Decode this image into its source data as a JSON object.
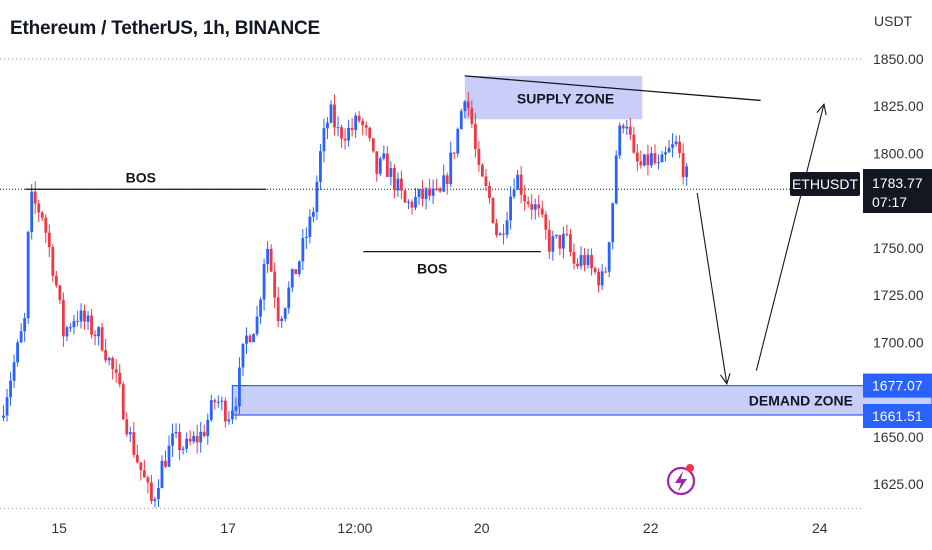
{
  "header": {
    "title": "Ethereum / TetherUS, 1h, BINANCE"
  },
  "colors": {
    "up": "#2962ff",
    "down": "#f23645",
    "zone_fill": "#c9cef8",
    "zone_border": "#2962ff",
    "line": "#131722",
    "dotted": "#9598a1",
    "tag_dark": "#131722",
    "tag_blue": "#2962ff",
    "logo_purple": "#9c27b0",
    "logo_red": "#f23645"
  },
  "chart_data": {
    "type": "candlestick",
    "symbol": "ETHUSDT",
    "y_unit": "USDT",
    "ylim": [
      1607,
      1860
    ],
    "y_ticks": [
      "1850.00",
      "1825.00",
      "1800.00",
      "1775.00",
      "1750.00",
      "1725.00",
      "1700.00",
      "1675.00",
      "1650.00",
      "1625.00"
    ],
    "x_ticks": [
      "15",
      "17",
      "12:00",
      "20",
      "22",
      "24"
    ],
    "x_tick_values": [
      15,
      17,
      18.5,
      20,
      22,
      24
    ],
    "xlim": [
      14.3,
      24.5
    ],
    "last_price": {
      "label": "ETHUSDT",
      "value": "1783.77",
      "countdown": "07:17"
    },
    "demand_zone": {
      "label": "DEMAND ZONE",
      "top": 1677.07,
      "bottom": 1661.51,
      "top_label": "1677.07",
      "bottom_label": "1661.51",
      "x_start": 17.05
    },
    "supply_zone": {
      "label": "SUPPLY ZONE",
      "top": 1841,
      "bottom": 1818,
      "x_start": 19.8,
      "x_end": 21.9
    },
    "bos": [
      {
        "label": "BOS",
        "price": 1781,
        "x_start": 14.6,
        "x_end": 17.45
      },
      {
        "label": "BOS",
        "price": 1748,
        "x_start": 18.6,
        "x_end": 20.7
      }
    ],
    "trendline": {
      "from": {
        "x": 19.8,
        "price": 1841
      },
      "to": {
        "x": 23.3,
        "price": 1828
      }
    },
    "projection": [
      {
        "x": 22.55,
        "price": 1779
      },
      {
        "x": 22.9,
        "price": 1678
      },
      {
        "x": 23.25,
        "price": 1685
      },
      {
        "x": 24.05,
        "price": 1826
      }
    ],
    "price_path": [
      [
        14.3,
        1660
      ],
      [
        14.6,
        1712
      ],
      [
        14.65,
        1776
      ],
      [
        14.8,
        1768
      ],
      [
        14.95,
        1735
      ],
      [
        15.05,
        1705
      ],
      [
        15.2,
        1715
      ],
      [
        15.5,
        1702
      ],
      [
        15.7,
        1676
      ],
      [
        15.85,
        1648
      ],
      [
        16.0,
        1628
      ],
      [
        16.1,
        1614
      ],
      [
        16.2,
        1633
      ],
      [
        16.35,
        1648
      ],
      [
        16.5,
        1644
      ],
      [
        16.7,
        1652
      ],
      [
        16.85,
        1670
      ],
      [
        17.0,
        1662
      ],
      [
        17.1,
        1672
      ],
      [
        17.2,
        1701
      ],
      [
        17.35,
        1713
      ],
      [
        17.45,
        1755
      ],
      [
        17.6,
        1713
      ],
      [
        17.7,
        1725
      ],
      [
        17.85,
        1745
      ],
      [
        18.0,
        1768
      ],
      [
        18.1,
        1802
      ],
      [
        18.2,
        1822
      ],
      [
        18.3,
        1811
      ],
      [
        18.45,
        1812
      ],
      [
        18.55,
        1818
      ],
      [
        18.65,
        1808
      ],
      [
        18.75,
        1790
      ],
      [
        18.85,
        1795
      ],
      [
        19.0,
        1782
      ],
      [
        19.1,
        1772
      ],
      [
        19.2,
        1775
      ],
      [
        19.35,
        1778
      ],
      [
        19.5,
        1776
      ],
      [
        19.6,
        1790
      ],
      [
        19.7,
        1808
      ],
      [
        19.8,
        1833
      ],
      [
        19.9,
        1812
      ],
      [
        19.95,
        1790
      ],
      [
        20.1,
        1775
      ],
      [
        20.2,
        1753
      ],
      [
        20.3,
        1770
      ],
      [
        20.4,
        1790
      ],
      [
        20.5,
        1778
      ],
      [
        20.65,
        1770
      ],
      [
        20.8,
        1752
      ],
      [
        21.0,
        1754
      ],
      [
        21.1,
        1740
      ],
      [
        21.2,
        1745
      ],
      [
        21.3,
        1738
      ],
      [
        21.45,
        1732
      ],
      [
        21.55,
        1775
      ],
      [
        21.6,
        1805
      ],
      [
        21.7,
        1822
      ],
      [
        21.8,
        1796
      ],
      [
        21.9,
        1792
      ],
      [
        22.0,
        1798
      ],
      [
        22.1,
        1791
      ],
      [
        22.2,
        1800
      ],
      [
        22.3,
        1804
      ],
      [
        22.4,
        1791
      ],
      [
        22.45,
        1783.77
      ]
    ]
  }
}
